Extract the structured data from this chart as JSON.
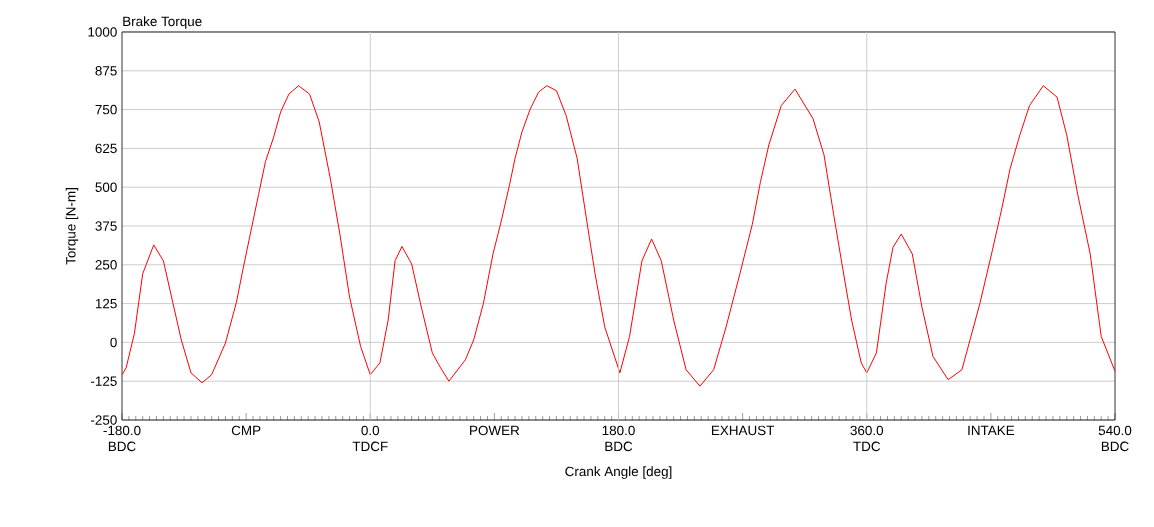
{
  "chart_data": {
    "type": "line",
    "title": "Brake Torque",
    "xlabel": "Crank Angle [deg]",
    "ylabel": "Torque [N-m]",
    "x": [
      -180,
      -177,
      -171,
      -165,
      -157,
      -150,
      -143,
      -137,
      -130,
      -122,
      -115,
      -105,
      -97,
      -92,
      -86,
      -81,
      -76,
      -70,
      -65,
      -59,
      -52,
      -44,
      -37,
      -29,
      -22,
      -15,
      -7,
      0,
      7,
      13,
      18,
      23,
      30,
      37,
      45,
      51,
      57,
      69,
      75,
      82,
      89,
      95,
      101,
      105,
      110,
      116,
      122,
      128,
      135,
      142,
      150,
      157,
      163,
      170,
      181,
      188,
      197,
      204,
      211,
      220,
      229,
      239,
      249,
      258,
      268,
      277,
      283,
      289,
      298,
      308,
      321,
      329,
      336,
      342,
      349,
      356,
      360,
      367,
      374,
      379,
      385,
      393,
      400,
      408,
      419,
      429,
      442,
      451,
      458,
      464,
      471,
      478,
      488,
      498,
      505,
      513,
      522,
      530,
      540
    ],
    "series": [
      {
        "color": "#ff0000",
        "values": [
          -104,
          -82,
          29,
          221,
          314,
          263,
          125,
          8,
          -98,
          -130,
          -104,
          -2,
          130,
          242,
          370,
          476,
          582,
          662,
          742,
          800,
          827,
          800,
          710,
          529,
          348,
          146,
          -13,
          -104,
          -66,
          72,
          263,
          309,
          253,
          114,
          -34,
          -82,
          -125,
          -56,
          8,
          125,
          285,
          391,
          508,
          593,
          678,
          752,
          806,
          827,
          811,
          731,
          593,
          391,
          221,
          50,
          -98,
          19,
          263,
          333,
          263,
          72,
          -88,
          -141,
          -88,
          50,
          221,
          380,
          519,
          636,
          763,
          816,
          721,
          604,
          412,
          253,
          72,
          -66,
          -98,
          -34,
          189,
          306,
          349,
          285,
          114,
          -45,
          -120,
          -88,
          125,
          295,
          433,
          561,
          668,
          763,
          827,
          790,
          668,
          476,
          285,
          19,
          -93
        ]
      }
    ],
    "xlim": [
      -180,
      540
    ],
    "ylim": [
      -250,
      1000
    ],
    "xticks": [
      {
        "value": -180,
        "label": "-180.0\nBDC"
      },
      {
        "value": -90,
        "label": "CMP"
      },
      {
        "value": 0,
        "label": "0.0\nTDCF"
      },
      {
        "value": 90,
        "label": "POWER"
      },
      {
        "value": 180,
        "label": "180.0\nBDC"
      },
      {
        "value": 270,
        "label": "EXHAUST"
      },
      {
        "value": 360,
        "label": "360.0\nTDC"
      },
      {
        "value": 450,
        "label": "INTAKE"
      },
      {
        "value": 540,
        "label": "540.0\nBDC"
      }
    ],
    "ref_lines": [
      {
        "axis": "x",
        "value": 0,
        "color": "#c8c8c8"
      },
      {
        "axis": "x",
        "value": 180,
        "color": "#c8c8c8"
      },
      {
        "axis": "x",
        "value": 360,
        "color": "#c8c8c8"
      }
    ],
    "yticks": [
      -250,
      -125,
      0,
      125,
      250,
      375,
      500,
      625,
      750,
      875,
      1000
    ],
    "grid": "y",
    "marker": "none",
    "line_style": "solid"
  }
}
